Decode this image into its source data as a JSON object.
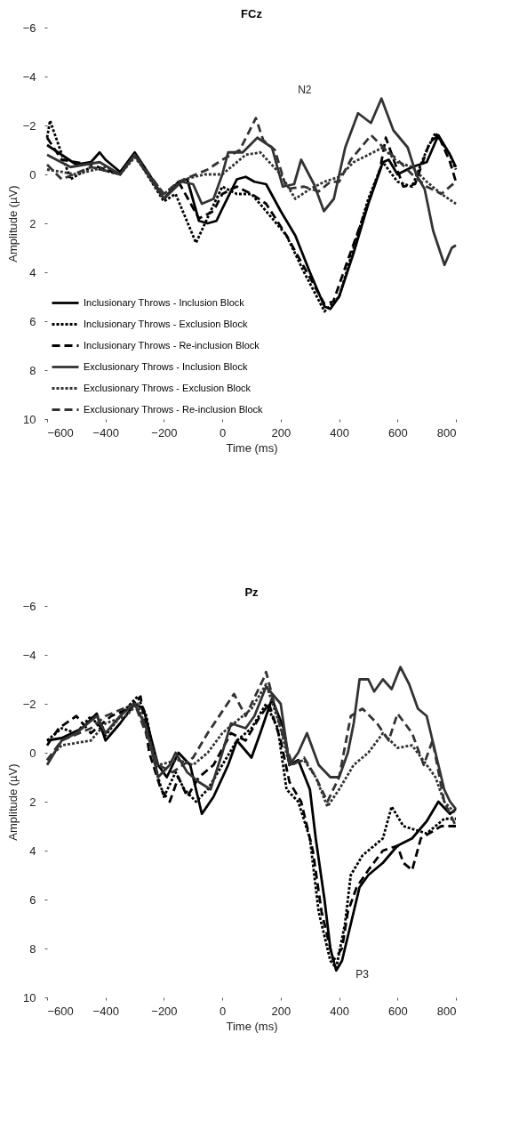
{
  "chart_data": [
    {
      "type": "line",
      "title": "FCz",
      "xlabel": "Time (ms)",
      "ylabel": "Amplitude (µV)",
      "xlim": [
        -600,
        800
      ],
      "xticks": [
        -600,
        -400,
        -200,
        0,
        200,
        400,
        600,
        800
      ],
      "ylim": [
        10,
        -6
      ],
      "yticks": [
        -6,
        -4,
        -2,
        0,
        2,
        4,
        6,
        8,
        10
      ],
      "legend": "bottom left",
      "marker": "none",
      "annotations": [
        "N2"
      ],
      "series": [
        {
          "name": "Inclusionary Throws - Inclusion Block",
          "color": "#000000",
          "line_style": "solid",
          "x": [
            -600,
            -550,
            -500,
            -450,
            -420,
            -400,
            -350,
            -300,
            -250,
            -200,
            -150,
            -120,
            -80,
            -50,
            -20,
            0,
            50,
            80,
            110,
            150,
            200,
            250,
            300,
            350,
            370,
            400,
            450,
            500,
            550,
            570,
            600,
            650,
            700,
            740,
            780,
            800
          ],
          "values": [
            -1.2,
            -0.8,
            -0.4,
            -0.5,
            -0.9,
            -0.6,
            -0.1,
            -0.9,
            0.0,
            1.0,
            0.3,
            0.2,
            1.9,
            2.0,
            1.9,
            1.4,
            0.2,
            0.1,
            0.3,
            0.4,
            1.5,
            2.5,
            4.0,
            5.4,
            5.5,
            5.0,
            3.2,
            1.2,
            -0.5,
            -0.6,
            0.0,
            -0.3,
            -0.5,
            -1.6,
            -0.8,
            -0.3
          ]
        },
        {
          "name": "Inclusionary Throws - Exclusion Block",
          "color": "#000000",
          "line_style": "dotted",
          "x": [
            -600,
            -590,
            -520,
            -450,
            -350,
            -300,
            -200,
            -160,
            -90,
            -40,
            0,
            50,
            100,
            150,
            220,
            280,
            350,
            400,
            450,
            500,
            550,
            600,
            650,
            700,
            730,
            780,
            800
          ],
          "values": [
            -1.5,
            -2.2,
            0.2,
            -0.3,
            0.0,
            -0.8,
            1.1,
            0.8,
            2.8,
            1.5,
            0.5,
            0.8,
            0.8,
            1.5,
            2.5,
            4.0,
            5.6,
            5.0,
            3.0,
            1.0,
            -0.5,
            0.3,
            0.5,
            -1.0,
            -1.7,
            -0.8,
            -0.2
          ]
        },
        {
          "name": "Inclusionary Throws - Re-inclusion Block",
          "color": "#000000",
          "line_style": "dashed",
          "x": [
            -600,
            -550,
            -450,
            -350,
            -300,
            -200,
            -150,
            -80,
            -30,
            0,
            50,
            100,
            150,
            220,
            290,
            350,
            380,
            430,
            490,
            540,
            560,
            620,
            660,
            710,
            740,
            780,
            800
          ],
          "values": [
            -1.5,
            -0.6,
            -0.4,
            0.0,
            -0.8,
            1.0,
            0.3,
            1.8,
            1.5,
            0.8,
            0.5,
            0.8,
            1.2,
            2.5,
            4.0,
            5.3,
            5.2,
            3.5,
            1.5,
            -0.2,
            -1.5,
            0.5,
            0.4,
            -1.3,
            -1.6,
            -0.5,
            0.3
          ]
        },
        {
          "name": "Exclusionary Throws - Inclusion Block",
          "color": "#333333",
          "line_style": "solid",
          "x": [
            -600,
            -520,
            -420,
            -350,
            -300,
            -200,
            -140,
            -100,
            -70,
            -30,
            0,
            20,
            70,
            120,
            170,
            207,
            246,
            270,
            314,
            348,
            382,
            421,
            465,
            509,
            545,
            586,
            635,
            664,
            693,
            722,
            761,
            786,
            800
          ],
          "values": [
            -0.8,
            -0.3,
            -0.5,
            0.0,
            -0.8,
            1.0,
            0.3,
            0.4,
            1.2,
            1.0,
            0.0,
            -0.9,
            -0.9,
            -1.5,
            -1.1,
            0.5,
            0.4,
            -0.6,
            0.4,
            1.5,
            1.0,
            -1.1,
            -2.5,
            -2.1,
            -3.1,
            -1.8,
            -1.1,
            0.0,
            0.6,
            2.3,
            3.7,
            3.0,
            2.9
          ]
        },
        {
          "name": "Exclusionary Throws - Exclusion Block",
          "color": "#333333",
          "line_style": "dotted",
          "x": [
            -600,
            -500,
            -400,
            -350,
            -300,
            -200,
            -130,
            -60,
            0,
            80,
            130,
            200,
            250,
            300,
            350,
            400,
            450,
            500,
            550,
            600,
            650,
            700,
            750,
            800
          ],
          "values": [
            -0.2,
            0.0,
            -0.3,
            0.0,
            -0.7,
            0.8,
            0.2,
            0.0,
            0.0,
            -0.8,
            -0.9,
            0.0,
            1.0,
            0.6,
            0.3,
            0.1,
            -0.5,
            -0.8,
            -1.1,
            -0.5,
            -0.3,
            0.3,
            0.8,
            1.2
          ]
        },
        {
          "name": "Exclusionary Throws - Re-inclusion Block",
          "color": "#333333",
          "line_style": "dashed",
          "x": [
            -600,
            -550,
            -450,
            -350,
            -300,
            -200,
            -150,
            -50,
            0,
            60,
            115,
            140,
            180,
            220,
            280,
            330,
            370,
            400,
            440,
            510,
            560,
            600,
            650,
            700,
            750,
            800
          ],
          "values": [
            -0.4,
            0.2,
            -0.3,
            0.0,
            -0.8,
            0.8,
            0.3,
            -0.2,
            -0.6,
            -1.0,
            -2.3,
            -1.4,
            -1.0,
            0.6,
            0.5,
            0.7,
            0.3,
            0.3,
            -0.6,
            -1.6,
            -1.0,
            -0.6,
            0.0,
            0.5,
            0.8,
            0.3
          ]
        }
      ]
    },
    {
      "type": "line",
      "title": "Pz",
      "xlabel": "Time (ms)",
      "ylabel": "Amplitude (µV)",
      "xlim": [
        -600,
        800
      ],
      "xticks": [
        -600,
        -400,
        -200,
        0,
        200,
        400,
        600,
        800
      ],
      "ylim": [
        10,
        -6
      ],
      "yticks": [
        -6,
        -4,
        -2,
        0,
        2,
        4,
        6,
        8,
        10
      ],
      "marker": "none",
      "annotations": [
        {
          "text": "P3",
          "x": 390,
          "y": 8.9
        }
      ],
      "series": [
        {
          "color": "#000000",
          "line_style": "solid",
          "x": [
            -600,
            -550,
            -480,
            -430,
            -400,
            -350,
            -300,
            -270,
            -220,
            -190,
            -150,
            -110,
            -70,
            -30,
            20,
            50,
            100,
            130,
            170,
            210,
            230,
            260,
            300,
            320,
            350,
            370,
            390,
            410,
            440,
            470,
            500,
            550,
            600,
            650,
            700,
            740,
            780,
            800
          ],
          "values": [
            -0.5,
            -0.6,
            -1.0,
            -1.6,
            -0.5,
            -1.2,
            -2.0,
            -1.8,
            0.5,
            1.0,
            0.0,
            0.5,
            2.5,
            1.8,
            0.5,
            -0.5,
            0.2,
            -0.8,
            -2.2,
            -1.0,
            0.5,
            0.3,
            1.5,
            3.5,
            6.0,
            8.0,
            8.9,
            8.5,
            7.0,
            5.5,
            5.0,
            4.5,
            3.8,
            3.5,
            2.8,
            2.0,
            2.5,
            2.3
          ]
        },
        {
          "color": "#000000",
          "line_style": "dotted",
          "x": [
            -600,
            -550,
            -500,
            -450,
            -400,
            -330,
            -290,
            -260,
            -220,
            -200,
            -160,
            -130,
            -90,
            -50,
            0,
            50,
            100,
            150,
            190,
            220,
            260,
            300,
            330,
            370,
            390,
            420,
            440,
            480,
            550,
            580,
            620,
            700,
            760,
            800
          ],
          "values": [
            -0.5,
            -1.0,
            -0.8,
            -1.5,
            -0.7,
            -1.8,
            -2.3,
            -1.5,
            1.0,
            1.8,
            0.8,
            1.5,
            2.0,
            1.5,
            0.5,
            -0.5,
            -1.0,
            -2.0,
            -1.0,
            1.5,
            2.0,
            3.5,
            6.5,
            8.5,
            8.8,
            7.0,
            5.0,
            4.2,
            3.5,
            2.2,
            3.0,
            3.3,
            2.7,
            2.7
          ]
        },
        {
          "color": "#000000",
          "line_style": "dashed",
          "x": [
            -600,
            -560,
            -500,
            -450,
            -380,
            -320,
            -280,
            -250,
            -210,
            -180,
            -150,
            -120,
            -80,
            -30,
            30,
            80,
            130,
            160,
            200,
            230,
            270,
            310,
            340,
            380,
            410,
            430,
            460,
            500,
            550,
            600,
            620,
            650,
            680,
            750,
            800
          ],
          "values": [
            -0.3,
            -1.0,
            -1.5,
            -0.8,
            -1.5,
            -1.8,
            -2.3,
            0.0,
            1.5,
            2.0,
            1.0,
            1.8,
            1.0,
            0.5,
            -0.8,
            -0.5,
            -1.5,
            -2.0,
            -0.5,
            1.2,
            2.0,
            4.0,
            6.5,
            8.5,
            8.0,
            6.5,
            5.5,
            4.8,
            4.0,
            3.8,
            4.5,
            4.8,
            3.5,
            3.0,
            3.0
          ]
        },
        {
          "color": "#333333",
          "line_style": "solid",
          "x": [
            -600,
            -550,
            -500,
            -430,
            -400,
            -350,
            -300,
            -260,
            -220,
            -180,
            -160,
            -120,
            -80,
            -40,
            0,
            30,
            80,
            110,
            150,
            200,
            230,
            260,
            290,
            330,
            370,
            400,
            430,
            450,
            470,
            500,
            520,
            550,
            580,
            610,
            640,
            670,
            700,
            730,
            760,
            780,
            800
          ],
          "values": [
            0.5,
            -0.5,
            -0.8,
            -1.5,
            -0.8,
            -1.5,
            -2.0,
            -1.0,
            1.0,
            0.5,
            0.0,
            0.8,
            1.2,
            1.5,
            0.0,
            -1.2,
            -1.0,
            -1.5,
            -2.7,
            -2.0,
            0.5,
            0.0,
            -0.8,
            0.5,
            1.0,
            1.0,
            0.0,
            -1.2,
            -3.0,
            -3.0,
            -2.5,
            -3.0,
            -2.6,
            -3.5,
            -2.8,
            -1.8,
            -1.5,
            0.0,
            1.5,
            2.0,
            2.3
          ]
        },
        {
          "color": "#333333",
          "line_style": "dotted",
          "x": [
            -600,
            -550,
            -450,
            -400,
            -330,
            -290,
            -220,
            -150,
            -100,
            -50,
            0,
            50,
            100,
            150,
            200,
            230,
            280,
            320,
            360,
            400,
            450,
            500,
            550,
            600,
            650,
            700,
            730,
            760,
            800
          ],
          "values": [
            0.3,
            -0.3,
            -0.5,
            -1.2,
            -1.5,
            -2.0,
            0.5,
            0.3,
            0.5,
            0.0,
            -0.8,
            -1.3,
            -1.8,
            -2.8,
            -1.0,
            0.5,
            0.3,
            1.0,
            2.2,
            1.5,
            0.5,
            0.0,
            -0.8,
            -0.2,
            -0.3,
            0.5,
            1.0,
            2.0,
            2.5
          ]
        },
        {
          "color": "#333333",
          "line_style": "dashed",
          "x": [
            -600,
            -550,
            -450,
            -400,
            -300,
            -220,
            -170,
            -100,
            -50,
            40,
            80,
            140,
            150,
            200,
            240,
            280,
            320,
            360,
            400,
            440,
            480,
            530,
            570,
            600,
            650,
            690,
            720,
            760,
            800
          ],
          "values": [
            0.3,
            -0.5,
            -1.0,
            -1.5,
            -2.0,
            0.5,
            0.8,
            0.2,
            -0.8,
            -2.4,
            -1.5,
            -3.0,
            -3.3,
            -1.0,
            0.5,
            0.2,
            1.0,
            2.0,
            1.0,
            -1.5,
            -1.8,
            -1.2,
            -0.5,
            -1.6,
            -0.8,
            0.5,
            -0.5,
            2.0,
            3.0
          ]
        }
      ]
    }
  ]
}
